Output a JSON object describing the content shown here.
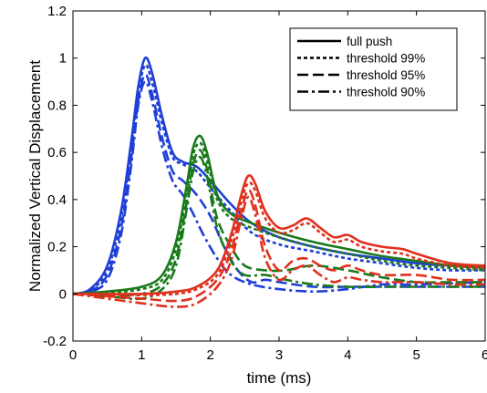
{
  "chart_data": {
    "type": "line",
    "title": "",
    "xlabel": "time (ms)",
    "ylabel": "Normalized Vertical Displacement",
    "xlim": [
      0,
      6
    ],
    "ylim": [
      -0.2,
      1.2
    ],
    "x_ticks": [
      "0",
      "1",
      "2",
      "3",
      "4",
      "5",
      "6"
    ],
    "y_ticks": [
      "-0.2",
      "0",
      "0.2",
      "0.4",
      "0.6",
      "0.8",
      "1",
      "1.2"
    ],
    "grid": false,
    "legend_position": "top-right",
    "legend": [
      {
        "label": "full push",
        "style": "solid"
      },
      {
        "label": "threshold 99%",
        "style": "dotted"
      },
      {
        "label": "threshold 95%",
        "style": "dashed"
      },
      {
        "label": "threshold 90%",
        "style": "dashdot"
      }
    ],
    "colors": {
      "blue": "#1f3fd6",
      "green": "#1a7a1a",
      "red": "#e0301e"
    },
    "series": [
      {
        "group": "blue",
        "style": "solid",
        "points": [
          [
            0,
            0
          ],
          [
            0.25,
            0.02
          ],
          [
            0.5,
            0.12
          ],
          [
            0.7,
            0.35
          ],
          [
            0.85,
            0.65
          ],
          [
            0.95,
            0.88
          ],
          [
            1.05,
            1.0
          ],
          [
            1.15,
            0.94
          ],
          [
            1.3,
            0.75
          ],
          [
            1.45,
            0.6
          ],
          [
            1.6,
            0.56
          ],
          [
            1.8,
            0.54
          ],
          [
            2.0,
            0.48
          ],
          [
            2.3,
            0.38
          ],
          [
            2.6,
            0.3
          ],
          [
            3.0,
            0.24
          ],
          [
            3.5,
            0.2
          ],
          [
            4.0,
            0.17
          ],
          [
            4.5,
            0.15
          ],
          [
            5.0,
            0.13
          ],
          [
            5.5,
            0.12
          ],
          [
            6.0,
            0.12
          ]
        ]
      },
      {
        "group": "blue",
        "style": "dotted",
        "points": [
          [
            0,
            0
          ],
          [
            0.25,
            0.015
          ],
          [
            0.5,
            0.1
          ],
          [
            0.7,
            0.32
          ],
          [
            0.85,
            0.62
          ],
          [
            0.95,
            0.85
          ],
          [
            1.05,
            0.97
          ],
          [
            1.15,
            0.9
          ],
          [
            1.3,
            0.72
          ],
          [
            1.45,
            0.58
          ],
          [
            1.6,
            0.55
          ],
          [
            1.8,
            0.52
          ],
          [
            2.0,
            0.45
          ],
          [
            2.3,
            0.35
          ],
          [
            2.6,
            0.26
          ],
          [
            3.0,
            0.21
          ],
          [
            3.5,
            0.18
          ],
          [
            4.0,
            0.15
          ],
          [
            4.5,
            0.13
          ],
          [
            5.0,
            0.11
          ],
          [
            5.5,
            0.1
          ],
          [
            6.0,
            0.1
          ]
        ]
      },
      {
        "group": "blue",
        "style": "dashed",
        "points": [
          [
            0,
            0
          ],
          [
            0.25,
            0.01
          ],
          [
            0.5,
            0.08
          ],
          [
            0.7,
            0.28
          ],
          [
            0.85,
            0.58
          ],
          [
            0.95,
            0.82
          ],
          [
            1.05,
            0.93
          ],
          [
            1.15,
            0.85
          ],
          [
            1.3,
            0.66
          ],
          [
            1.45,
            0.52
          ],
          [
            1.6,
            0.48
          ],
          [
            1.8,
            0.42
          ],
          [
            2.0,
            0.33
          ],
          [
            2.2,
            0.2
          ],
          [
            2.4,
            0.1
          ],
          [
            2.6,
            0.05
          ],
          [
            2.8,
            0.06
          ],
          [
            3.0,
            0.05
          ],
          [
            3.5,
            0.03
          ],
          [
            4.0,
            0.03
          ],
          [
            4.5,
            0.03
          ],
          [
            5.0,
            0.03
          ],
          [
            6.0,
            0.03
          ]
        ]
      },
      {
        "group": "blue",
        "style": "dashdot",
        "points": [
          [
            0,
            0
          ],
          [
            0.25,
            0.008
          ],
          [
            0.5,
            0.06
          ],
          [
            0.7,
            0.25
          ],
          [
            0.85,
            0.55
          ],
          [
            0.95,
            0.8
          ],
          [
            1.05,
            0.9
          ],
          [
            1.15,
            0.82
          ],
          [
            1.3,
            0.62
          ],
          [
            1.45,
            0.48
          ],
          [
            1.6,
            0.42
          ],
          [
            1.75,
            0.34
          ],
          [
            1.9,
            0.25
          ],
          [
            2.1,
            0.15
          ],
          [
            2.3,
            0.08
          ],
          [
            2.6,
            0.04
          ],
          [
            3.0,
            0.02
          ],
          [
            3.5,
            0.01
          ],
          [
            4.0,
            0.02
          ],
          [
            4.5,
            0.04
          ],
          [
            5.0,
            0.04
          ],
          [
            6.0,
            0.05
          ]
        ]
      },
      {
        "group": "green",
        "style": "solid",
        "points": [
          [
            0,
            0
          ],
          [
            0.5,
            0.01
          ],
          [
            1.0,
            0.03
          ],
          [
            1.3,
            0.08
          ],
          [
            1.5,
            0.22
          ],
          [
            1.65,
            0.45
          ],
          [
            1.75,
            0.62
          ],
          [
            1.85,
            0.67
          ],
          [
            1.95,
            0.6
          ],
          [
            2.1,
            0.42
          ],
          [
            2.3,
            0.34
          ],
          [
            2.6,
            0.3
          ],
          [
            3.0,
            0.26
          ],
          [
            3.5,
            0.22
          ],
          [
            4.0,
            0.19
          ],
          [
            4.5,
            0.16
          ],
          [
            5.0,
            0.14
          ],
          [
            5.5,
            0.12
          ],
          [
            6.0,
            0.11
          ]
        ]
      },
      {
        "group": "green",
        "style": "dotted",
        "points": [
          [
            0,
            0
          ],
          [
            0.5,
            0.005
          ],
          [
            1.0,
            0.02
          ],
          [
            1.3,
            0.06
          ],
          [
            1.5,
            0.19
          ],
          [
            1.65,
            0.42
          ],
          [
            1.75,
            0.59
          ],
          [
            1.85,
            0.64
          ],
          [
            1.95,
            0.57
          ],
          [
            2.1,
            0.4
          ],
          [
            2.3,
            0.32
          ],
          [
            2.6,
            0.28
          ],
          [
            3.0,
            0.24
          ],
          [
            3.5,
            0.2
          ],
          [
            4.0,
            0.17
          ],
          [
            4.5,
            0.14
          ],
          [
            5.0,
            0.12
          ],
          [
            5.5,
            0.11
          ],
          [
            6.0,
            0.1
          ]
        ]
      },
      {
        "group": "green",
        "style": "dashed",
        "points": [
          [
            0,
            0
          ],
          [
            0.5,
            -0.005
          ],
          [
            1.0,
            0.0
          ],
          [
            1.3,
            0.04
          ],
          [
            1.5,
            0.15
          ],
          [
            1.65,
            0.38
          ],
          [
            1.75,
            0.55
          ],
          [
            1.85,
            0.61
          ],
          [
            1.95,
            0.53
          ],
          [
            2.1,
            0.32
          ],
          [
            2.3,
            0.2
          ],
          [
            2.5,
            0.12
          ],
          [
            2.8,
            0.1
          ],
          [
            3.1,
            0.1
          ],
          [
            3.5,
            0.12
          ],
          [
            4.0,
            0.1
          ],
          [
            4.5,
            0.07
          ],
          [
            5.0,
            0.05
          ],
          [
            5.5,
            0.05
          ],
          [
            6.0,
            0.05
          ]
        ]
      },
      {
        "group": "green",
        "style": "dashdot",
        "points": [
          [
            0,
            0
          ],
          [
            0.5,
            -0.01
          ],
          [
            1.0,
            -0.02
          ],
          [
            1.3,
            0.02
          ],
          [
            1.5,
            0.12
          ],
          [
            1.65,
            0.35
          ],
          [
            1.75,
            0.52
          ],
          [
            1.85,
            0.58
          ],
          [
            1.95,
            0.5
          ],
          [
            2.1,
            0.28
          ],
          [
            2.3,
            0.14
          ],
          [
            2.5,
            0.08
          ],
          [
            2.8,
            0.08
          ],
          [
            3.1,
            0.06
          ],
          [
            3.5,
            0.04
          ],
          [
            4.0,
            0.03
          ],
          [
            4.5,
            0.03
          ],
          [
            5.0,
            0.03
          ],
          [
            5.5,
            0.03
          ],
          [
            6.0,
            0.03
          ]
        ]
      },
      {
        "group": "red",
        "style": "solid",
        "points": [
          [
            0,
            0
          ],
          [
            1.0,
            0.0
          ],
          [
            1.5,
            0.01
          ],
          [
            1.8,
            0.03
          ],
          [
            2.1,
            0.1
          ],
          [
            2.3,
            0.25
          ],
          [
            2.45,
            0.42
          ],
          [
            2.55,
            0.5
          ],
          [
            2.65,
            0.47
          ],
          [
            2.8,
            0.35
          ],
          [
            3.0,
            0.28
          ],
          [
            3.2,
            0.29
          ],
          [
            3.4,
            0.32
          ],
          [
            3.6,
            0.28
          ],
          [
            3.8,
            0.24
          ],
          [
            4.0,
            0.25
          ],
          [
            4.2,
            0.22
          ],
          [
            4.5,
            0.2
          ],
          [
            4.8,
            0.19
          ],
          [
            5.0,
            0.17
          ],
          [
            5.5,
            0.13
          ],
          [
            6.0,
            0.12
          ]
        ]
      },
      {
        "group": "red",
        "style": "dotted",
        "points": [
          [
            0,
            0
          ],
          [
            1.0,
            -0.005
          ],
          [
            1.5,
            0.0
          ],
          [
            1.8,
            0.02
          ],
          [
            2.1,
            0.08
          ],
          [
            2.3,
            0.22
          ],
          [
            2.45,
            0.39
          ],
          [
            2.55,
            0.47
          ],
          [
            2.65,
            0.44
          ],
          [
            2.8,
            0.32
          ],
          [
            3.0,
            0.26
          ],
          [
            3.2,
            0.27
          ],
          [
            3.4,
            0.3
          ],
          [
            3.6,
            0.26
          ],
          [
            3.8,
            0.22
          ],
          [
            4.0,
            0.23
          ],
          [
            4.2,
            0.2
          ],
          [
            4.5,
            0.18
          ],
          [
            4.8,
            0.17
          ],
          [
            5.0,
            0.15
          ],
          [
            5.5,
            0.12
          ],
          [
            6.0,
            0.11
          ]
        ]
      },
      {
        "group": "red",
        "style": "dashed",
        "points": [
          [
            0,
            0
          ],
          [
            1.0,
            -0.02
          ],
          [
            1.5,
            -0.03
          ],
          [
            1.8,
            -0.01
          ],
          [
            2.1,
            0.06
          ],
          [
            2.3,
            0.18
          ],
          [
            2.45,
            0.35
          ],
          [
            2.55,
            0.44
          ],
          [
            2.65,
            0.38
          ],
          [
            2.8,
            0.2
          ],
          [
            3.0,
            0.1
          ],
          [
            3.2,
            0.14
          ],
          [
            3.4,
            0.15
          ],
          [
            3.6,
            0.12
          ],
          [
            3.8,
            0.1
          ],
          [
            4.0,
            0.12
          ],
          [
            4.2,
            0.1
          ],
          [
            4.5,
            0.08
          ],
          [
            5.0,
            0.08
          ],
          [
            5.5,
            0.06
          ],
          [
            6.0,
            0.06
          ]
        ]
      },
      {
        "group": "red",
        "style": "dashdot",
        "points": [
          [
            0,
            0
          ],
          [
            1.0,
            -0.04
          ],
          [
            1.5,
            -0.055
          ],
          [
            1.8,
            -0.04
          ],
          [
            2.1,
            0.03
          ],
          [
            2.3,
            0.14
          ],
          [
            2.45,
            0.32
          ],
          [
            2.55,
            0.41
          ],
          [
            2.65,
            0.34
          ],
          [
            2.8,
            0.15
          ],
          [
            3.0,
            0.06
          ],
          [
            3.2,
            0.1
          ],
          [
            3.4,
            0.12
          ],
          [
            3.6,
            0.08
          ],
          [
            3.8,
            0.05
          ],
          [
            4.0,
            0.07
          ],
          [
            4.2,
            0.06
          ],
          [
            4.5,
            0.05
          ],
          [
            5.0,
            0.05
          ],
          [
            5.5,
            0.04
          ],
          [
            6.0,
            0.04
          ]
        ]
      }
    ]
  }
}
